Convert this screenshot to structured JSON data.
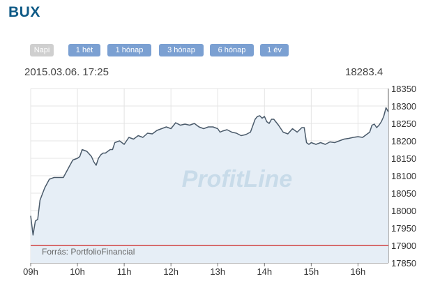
{
  "page": {
    "title": "BUX"
  },
  "tabs": [
    {
      "label": "Napi",
      "active": true
    },
    {
      "label": "1 hét",
      "active": false
    },
    {
      "label": "1 hónap",
      "active": false
    },
    {
      "label": "3 hónap",
      "active": false
    },
    {
      "label": "6 hónap",
      "active": false
    },
    {
      "label": "1 év",
      "active": false
    }
  ],
  "chart_header": {
    "timestamp": "2015.03.06. 17:25",
    "last_value": "18283.4"
  },
  "watermark": "ProfitLine",
  "source_note": "Forrás: PortfolioFinancial",
  "colors": {
    "line": "#4a5a6a",
    "fill": "#e6eef6",
    "reference": "#d04040",
    "title": "#0f5a86",
    "tab": "#7ba0d2"
  },
  "chart_data": {
    "type": "area",
    "x_ticks": [
      "09h",
      "10h",
      "11h",
      "12h",
      "13h",
      "14h",
      "15h",
      "16h"
    ],
    "y_ticks": [
      17850,
      17900,
      17950,
      18000,
      18050,
      18100,
      18150,
      18200,
      18250,
      18300,
      18350
    ],
    "xlim": [
      9.0,
      16.65
    ],
    "ylim": [
      17850,
      18350
    ],
    "reference_line": 17900,
    "grid": true,
    "x": [
      9.0,
      9.05,
      9.1,
      9.15,
      9.2,
      9.3,
      9.4,
      9.5,
      9.6,
      9.7,
      9.8,
      9.9,
      10.0,
      10.05,
      10.1,
      10.2,
      10.3,
      10.35,
      10.4,
      10.45,
      10.5,
      10.55,
      10.6,
      10.65,
      10.7,
      10.75,
      10.8,
      10.9,
      11.0,
      11.1,
      11.2,
      11.3,
      11.4,
      11.5,
      11.6,
      11.7,
      11.8,
      11.9,
      12.0,
      12.1,
      12.2,
      12.3,
      12.4,
      12.5,
      12.6,
      12.7,
      12.8,
      12.9,
      13.0,
      13.05,
      13.1,
      13.2,
      13.3,
      13.4,
      13.5,
      13.6,
      13.7,
      13.8,
      13.85,
      13.9,
      13.95,
      14.0,
      14.05,
      14.1,
      14.15,
      14.2,
      14.3,
      14.4,
      14.5,
      14.6,
      14.7,
      14.8,
      14.85,
      14.9,
      14.95,
      15.0,
      15.1,
      15.2,
      15.3,
      15.4,
      15.5,
      15.6,
      15.7,
      15.8,
      15.9,
      16.0,
      16.1,
      16.2,
      16.25,
      16.3,
      16.35,
      16.4,
      16.45,
      16.5,
      16.55,
      16.6,
      16.65
    ],
    "y": [
      17985,
      17930,
      17970,
      17975,
      18030,
      18065,
      18090,
      18095,
      18095,
      18095,
      18120,
      18145,
      18150,
      18155,
      18175,
      18170,
      18155,
      18140,
      18130,
      18150,
      18160,
      18165,
      18165,
      18170,
      18175,
      18175,
      18195,
      18200,
      18190,
      18210,
      18205,
      18215,
      18210,
      18222,
      18220,
      18230,
      18235,
      18240,
      18235,
      18252,
      18245,
      18248,
      18245,
      18250,
      18240,
      18235,
      18240,
      18240,
      18235,
      18225,
      18228,
      18232,
      18225,
      18222,
      18215,
      18218,
      18225,
      18262,
      18270,
      18272,
      18265,
      18270,
      18255,
      18250,
      18262,
      18262,
      18245,
      18225,
      18220,
      18235,
      18225,
      18238,
      18238,
      18195,
      18190,
      18195,
      18190,
      18195,
      18190,
      18197,
      18195,
      18200,
      18205,
      18207,
      18210,
      18212,
      18210,
      18220,
      18225,
      18245,
      18248,
      18238,
      18245,
      18255,
      18270,
      18295,
      18283
    ]
  }
}
